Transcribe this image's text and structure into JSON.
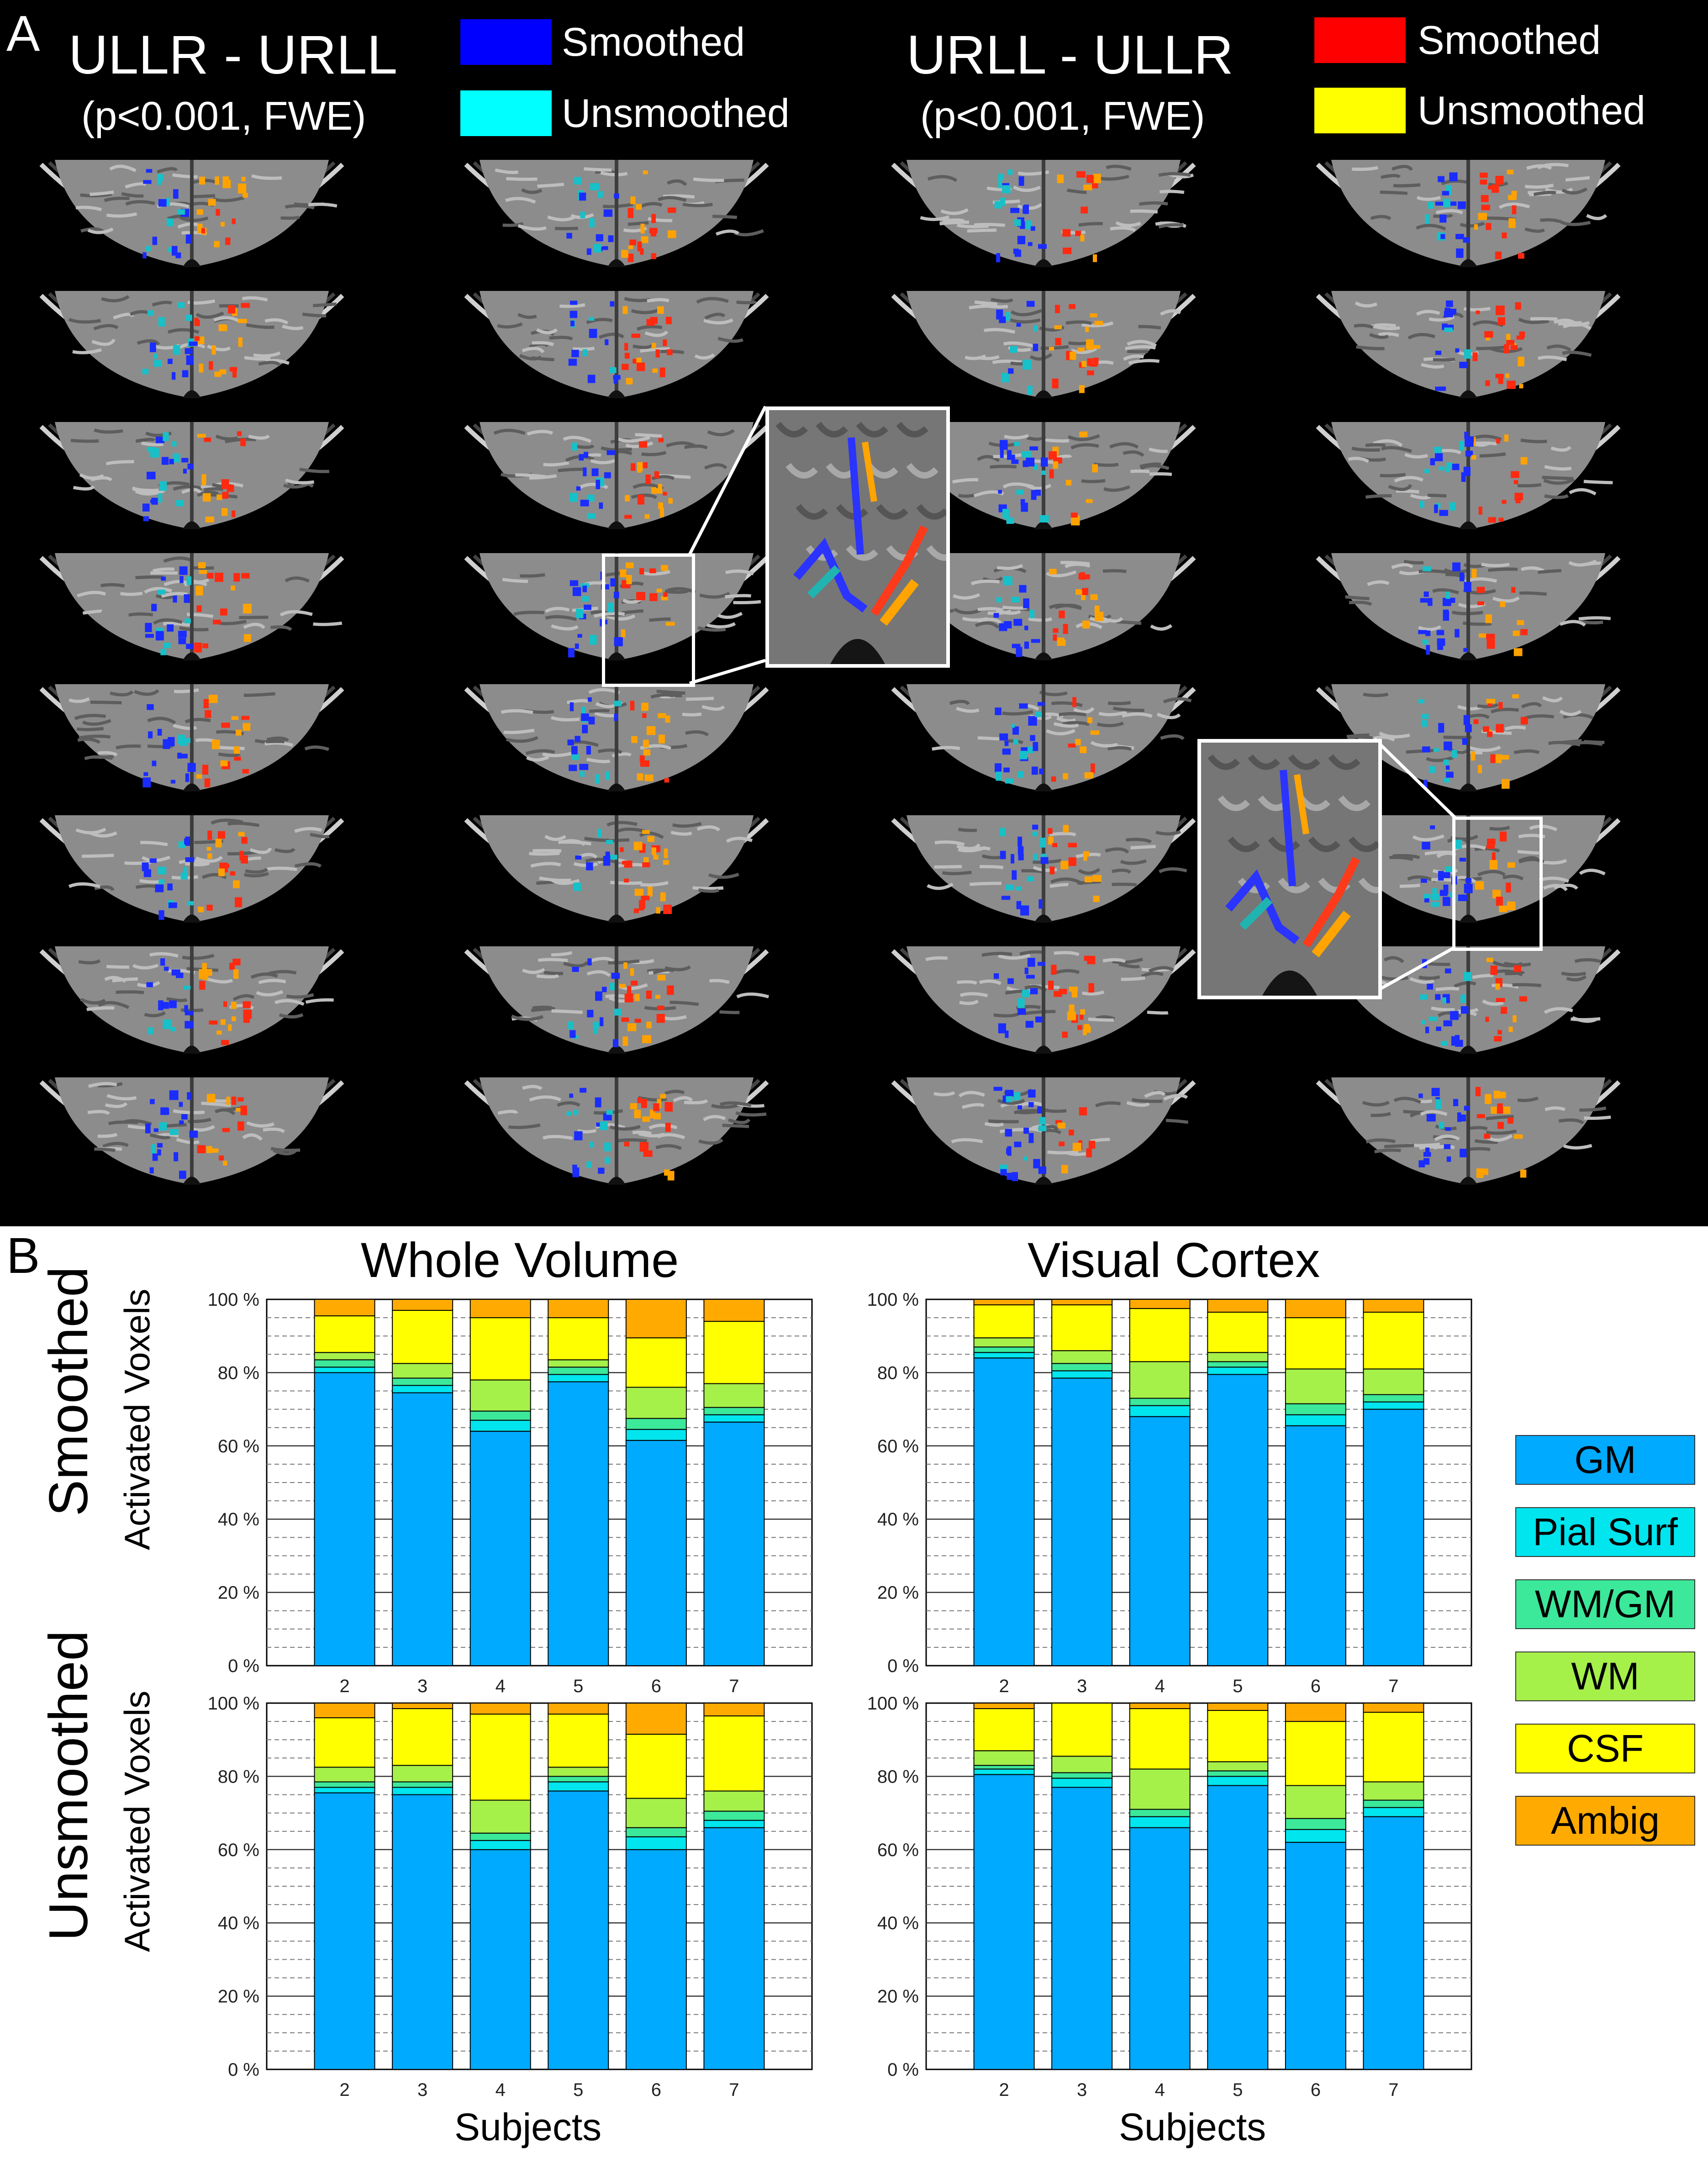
{
  "panelA": {
    "letter": "A",
    "left_contrast": {
      "title": "ULLR - URLL",
      "subtitle": "(p<0.001, FWE)"
    },
    "right_contrast": {
      "title": "URLL - ULLR",
      "subtitle": "(p<0.001, FWE)"
    },
    "left_legend": [
      {
        "label": "Smoothed",
        "color": "#0000ff"
      },
      {
        "label": "Unsmoothed",
        "color": "#00ffff"
      }
    ],
    "right_legend": [
      {
        "label": "Smoothed",
        "color": "#ff0000"
      },
      {
        "label": "Unsmoothed",
        "color": "#ffff00"
      }
    ]
  },
  "panelB": {
    "letter": "B",
    "col_titles": [
      "Whole Volume",
      "Visual Cortex"
    ],
    "row_titles": [
      "Smoothed",
      "Unsmoothed"
    ],
    "ylabel": "Activated Voxels",
    "xlabel": "Subjects",
    "legend": [
      {
        "label": "GM",
        "color": "#00aaff"
      },
      {
        "label": "Pial Surf",
        "color": "#00e5ee"
      },
      {
        "label": "WM/GM",
        "color": "#3ce89a"
      },
      {
        "label": "WM",
        "color": "#a6f04a"
      },
      {
        "label": "CSF",
        "color": "#ffff00"
      },
      {
        "label": "Ambig",
        "color": "#ffaa00"
      }
    ]
  },
  "chart_data": [
    {
      "type": "bar",
      "stacked": true,
      "panel": "Smoothed / Whole Volume",
      "categories": [
        "2",
        "3",
        "4",
        "5",
        "6",
        "7"
      ],
      "yticks": [
        "0 %",
        "20 %",
        "40 %",
        "60 %",
        "80 %",
        "100 %"
      ],
      "ylim": [
        0,
        100
      ],
      "series": [
        {
          "name": "GM",
          "values": [
            80,
            74.5,
            64,
            77.5,
            61.5,
            66.5
          ]
        },
        {
          "name": "Pial Surf",
          "values": [
            1.5,
            2,
            3,
            2,
            3,
            2
          ]
        },
        {
          "name": "WM/GM",
          "values": [
            2,
            2,
            2.5,
            2,
            3,
            2
          ]
        },
        {
          "name": "WM",
          "values": [
            2,
            4,
            8.5,
            2,
            8.5,
            6.5
          ]
        },
        {
          "name": "CSF",
          "values": [
            10,
            14.5,
            17,
            11.5,
            13.5,
            17
          ]
        },
        {
          "name": "Ambig",
          "values": [
            4.5,
            3,
            5,
            5,
            10.5,
            6
          ]
        }
      ]
    },
    {
      "type": "bar",
      "stacked": true,
      "panel": "Smoothed / Visual Cortex",
      "categories": [
        "2",
        "3",
        "4",
        "5",
        "6",
        "7"
      ],
      "yticks": [
        "0 %",
        "20 %",
        "40 %",
        "60 %",
        "80 %",
        "100 %"
      ],
      "ylim": [
        0,
        100
      ],
      "series": [
        {
          "name": "GM",
          "values": [
            84,
            78.5,
            68,
            79.5,
            65.5,
            70
          ]
        },
        {
          "name": "Pial Surf",
          "values": [
            1.5,
            2,
            3,
            2,
            3,
            2
          ]
        },
        {
          "name": "WM/GM",
          "values": [
            1.5,
            2,
            2,
            1.5,
            3,
            2
          ]
        },
        {
          "name": "WM",
          "values": [
            2.5,
            3.5,
            10,
            2.5,
            9.5,
            7
          ]
        },
        {
          "name": "CSF",
          "values": [
            9,
            12.5,
            14.5,
            11,
            14,
            15.5
          ]
        },
        {
          "name": "Ambig",
          "values": [
            1.5,
            1.5,
            2.5,
            3.5,
            5,
            3.5
          ]
        }
      ]
    },
    {
      "type": "bar",
      "stacked": true,
      "panel": "Unsmoothed / Whole Volume",
      "categories": [
        "2",
        "3",
        "4",
        "5",
        "6",
        "7"
      ],
      "yticks": [
        "0 %",
        "20 %",
        "40 %",
        "60 %",
        "80 %",
        "100 %"
      ],
      "ylim": [
        0,
        100
      ],
      "series": [
        {
          "name": "GM",
          "values": [
            75.5,
            75,
            60,
            76,
            60,
            66
          ]
        },
        {
          "name": "Pial Surf",
          "values": [
            1.5,
            2,
            2.5,
            2.5,
            3.5,
            2
          ]
        },
        {
          "name": "WM/GM",
          "values": [
            1.5,
            1.5,
            2,
            1.5,
            2.5,
            2.5
          ]
        },
        {
          "name": "WM",
          "values": [
            4,
            4.5,
            9,
            2.5,
            8,
            5.5
          ]
        },
        {
          "name": "CSF",
          "values": [
            13.5,
            15.5,
            23.5,
            14.5,
            17.5,
            20.5
          ]
        },
        {
          "name": "Ambig",
          "values": [
            4,
            1.5,
            3,
            3,
            8.5,
            3.5
          ]
        }
      ]
    },
    {
      "type": "bar",
      "stacked": true,
      "panel": "Unsmoothed / Visual Cortex",
      "categories": [
        "2",
        "3",
        "4",
        "5",
        "6",
        "7"
      ],
      "yticks": [
        "0 %",
        "20 %",
        "40 %",
        "60 %",
        "80 %",
        "100 %"
      ],
      "ylim": [
        0,
        100
      ],
      "series": [
        {
          "name": "GM",
          "values": [
            80.5,
            77,
            66,
            77.5,
            62,
            69
          ]
        },
        {
          "name": "Pial Surf",
          "values": [
            1.5,
            2.5,
            3,
            2.5,
            3.5,
            2.5
          ]
        },
        {
          "name": "WM/GM",
          "values": [
            1,
            1.5,
            2,
            1.5,
            3,
            2
          ]
        },
        {
          "name": "WM",
          "values": [
            4,
            4.5,
            11,
            2.5,
            9,
            5
          ]
        },
        {
          "name": "CSF",
          "values": [
            11.5,
            14.5,
            16.5,
            14,
            17.5,
            19
          ]
        },
        {
          "name": "Ambig",
          "values": [
            1.5,
            0,
            1.5,
            2,
            5,
            2.5
          ]
        }
      ]
    }
  ]
}
